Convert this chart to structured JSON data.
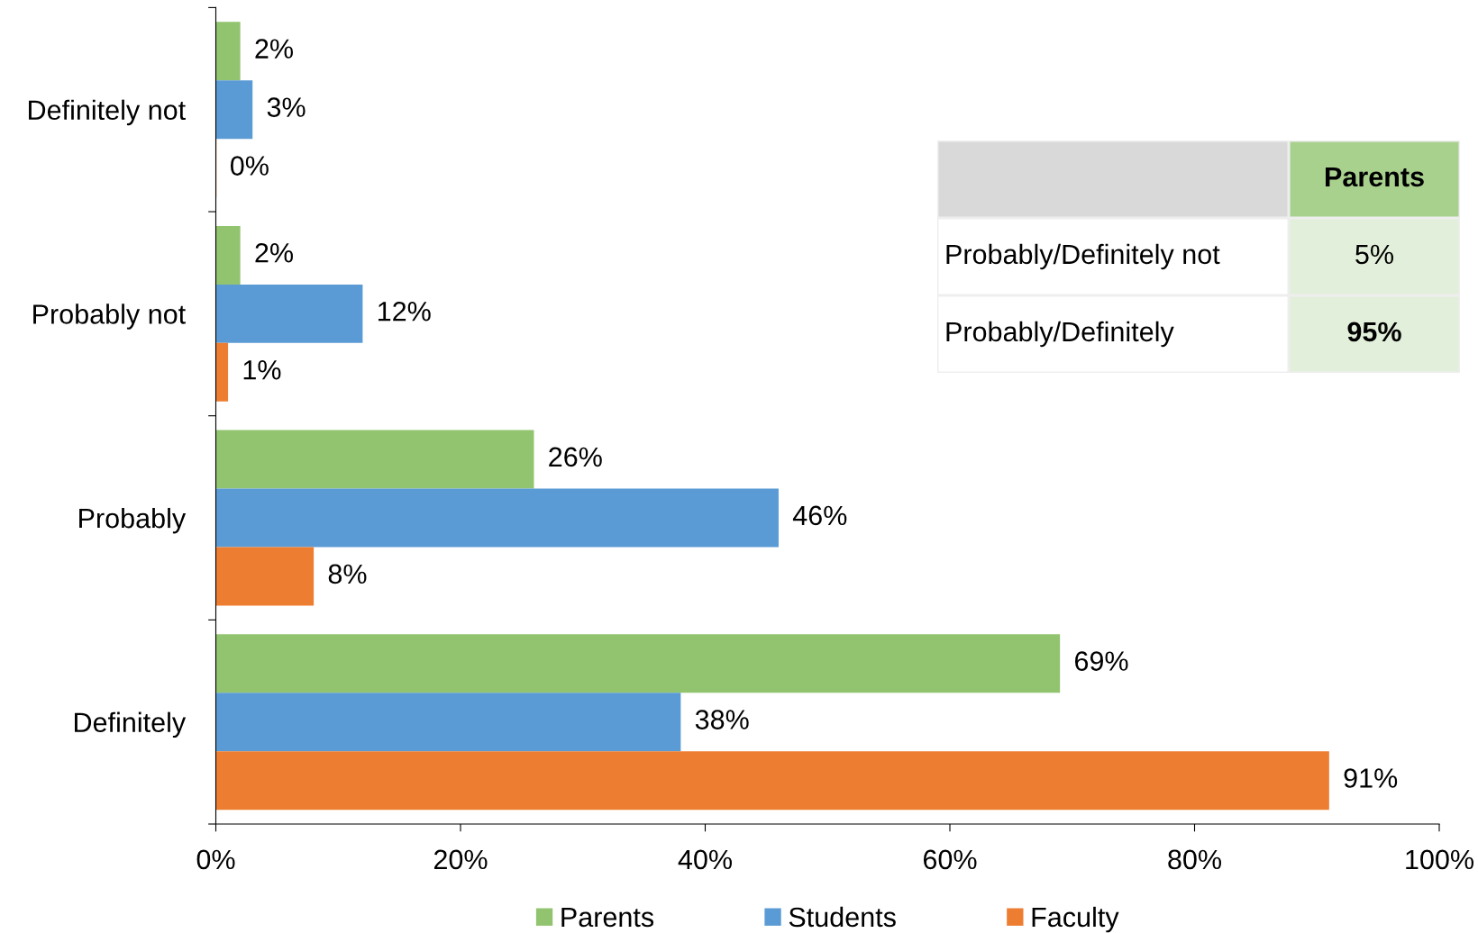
{
  "chart_data": [
    {
      "type": "bar",
      "orientation": "horizontal",
      "categories": [
        "Definitely not",
        "Probably not",
        "Probably",
        "Definitely"
      ],
      "series": [
        {
          "name": "Parents",
          "color": "#92c46f",
          "values": [
            2,
            2,
            26,
            69
          ],
          "value_labels": [
            "2%",
            "2%",
            "26%",
            "69%"
          ]
        },
        {
          "name": "Students",
          "color": "#5b9bd5",
          "values": [
            3,
            12,
            46,
            38
          ],
          "value_labels": [
            "3%",
            "12%",
            "46%",
            "38%"
          ]
        },
        {
          "name": "Faculty",
          "color": "#ed7d31",
          "values": [
            0,
            1,
            8,
            91
          ],
          "value_labels": [
            "0%",
            "1%",
            "8%",
            "91%"
          ]
        }
      ],
      "xlim": [
        0,
        100
      ],
      "xticks": [
        {
          "value": 0,
          "label": "0%"
        },
        {
          "value": 20,
          "label": "20%"
        },
        {
          "value": 40,
          "label": "40%"
        },
        {
          "value": 60,
          "label": "60%"
        },
        {
          "value": 80,
          "label": "80%"
        },
        {
          "value": 100,
          "label": "100%"
        }
      ],
      "legend": "bottom",
      "grid": false
    },
    {
      "type": "other",
      "annotations": [
        "Parents",
        "Probably/Definitely not",
        "5%",
        "Probably/Definitely",
        "95%"
      ]
    }
  ]
}
